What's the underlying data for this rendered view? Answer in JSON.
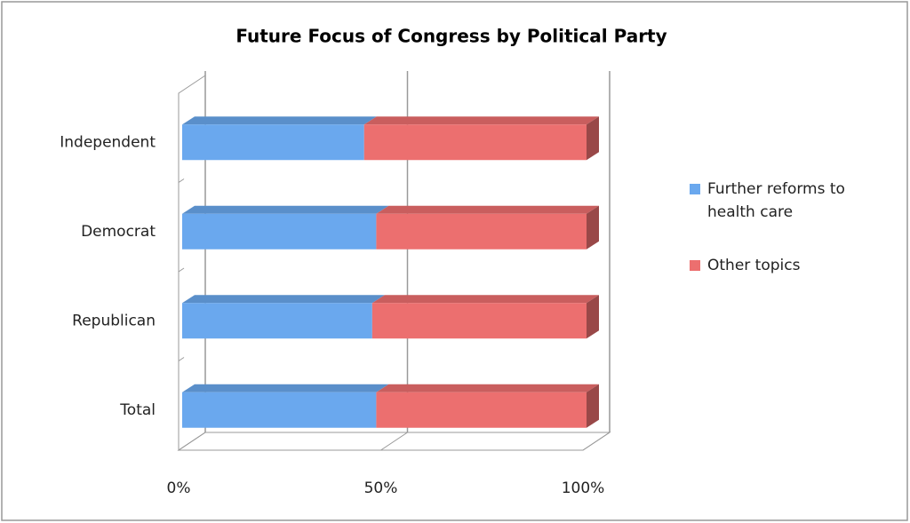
{
  "chart_data": {
    "type": "stacked-barh",
    "title": "Future Focus of Congress by Political Party",
    "categories": [
      "Independent",
      "Democrat",
      "Republican",
      "Total"
    ],
    "series": [
      {
        "name": "Further reforms to health care",
        "color": "#6aa8ee",
        "values": [
          45,
          48,
          47,
          48
        ]
      },
      {
        "name": "Other topics",
        "color": "#ec6f6f",
        "values": [
          55,
          52,
          53,
          52
        ]
      }
    ],
    "xlim": [
      0,
      100
    ],
    "xticks": [
      {
        "value": 0,
        "label": "0%"
      },
      {
        "value": 50,
        "label": "50%"
      },
      {
        "value": 100,
        "label": "100%"
      }
    ],
    "grid": true,
    "legend": "right"
  }
}
